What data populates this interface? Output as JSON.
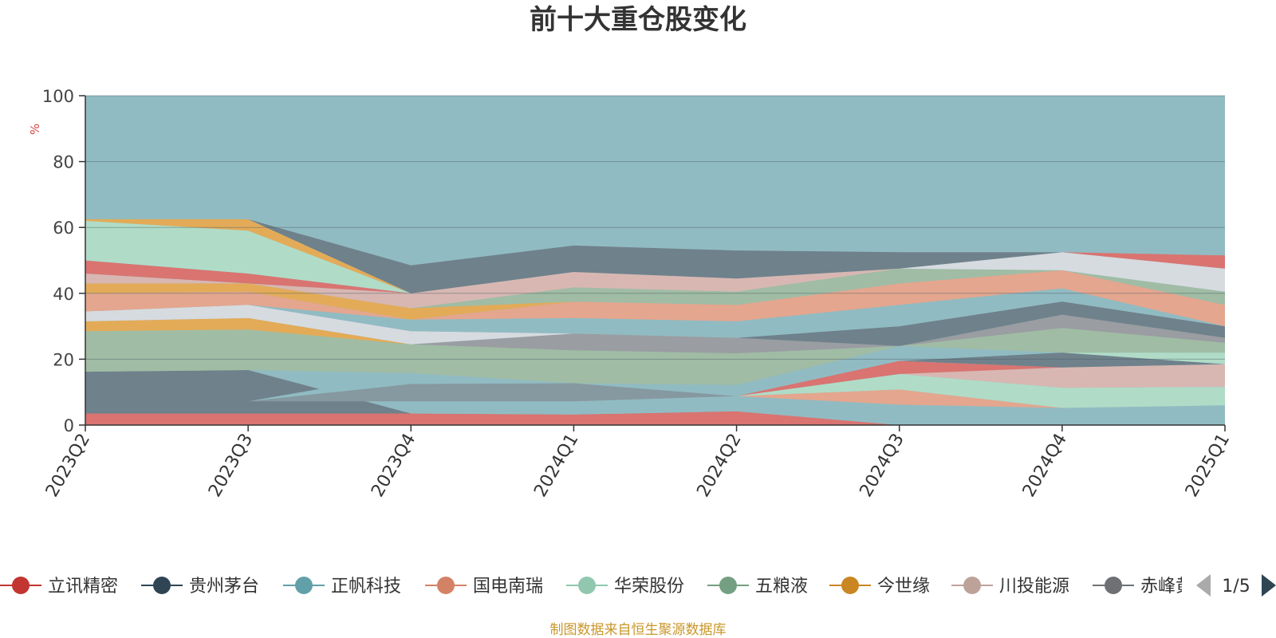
{
  "chart_data": {
    "type": "area",
    "title": "前十大重仓股变化",
    "ylabel": "%",
    "ylim": [
      0,
      100
    ],
    "yticks": [
      0,
      20,
      40,
      60,
      80,
      100
    ],
    "grid": true,
    "categories": [
      "2023Q2",
      "2023Q3",
      "2023Q4",
      "2024Q1",
      "2024Q2",
      "2024Q3",
      "2024Q4",
      "2025Q1"
    ],
    "background_color": "#91bbc2",
    "layers": [
      {
        "name": "立讯精密",
        "color": "#d97471",
        "lower": [
          0,
          0,
          0,
          0,
          0,
          0,
          0,
          0
        ],
        "upper": [
          3.5,
          3.5,
          3.5,
          3.2,
          4.2,
          0,
          0,
          0
        ]
      },
      {
        "name": "band-2",
        "color": "#91bbc2",
        "lower": [
          3.5,
          3.5,
          3.5,
          3.2,
          4.2,
          0,
          0,
          0
        ],
        "upper": [
          3.5,
          3.5,
          7.2,
          7.2,
          8.8,
          6.2,
          5.2,
          6.0
        ]
      },
      {
        "name": "band-3",
        "color": "#6f818b",
        "lower": [
          3.5,
          3.5,
          3.5,
          3.2,
          4.2,
          0,
          0,
          0
        ],
        "upper": [
          16.2,
          16.7,
          3.5,
          3.2,
          4.2,
          0,
          0,
          0
        ]
      },
      {
        "name": "band-4",
        "color": "#8698a0",
        "lower": [
          7.2,
          7.2,
          7.2,
          7.2,
          8.8,
          6.2,
          5.2,
          6.0
        ],
        "upper": [
          7.2,
          7.2,
          12.5,
          12.7,
          8.8,
          6.2,
          5.2,
          6.0
        ]
      },
      {
        "name": "band-5",
        "color": "#e4a68e",
        "lower": [
          7.2,
          7.2,
          7.2,
          7.2,
          8.8,
          6.2,
          5.2,
          6.0
        ],
        "upper": [
          7.2,
          7.2,
          7.2,
          7.2,
          8.8,
          10.8,
          5.2,
          6.0
        ]
      },
      {
        "name": "band-6",
        "color": "#b0dcc7",
        "lower": [
          7.2,
          7.2,
          7.2,
          7.2,
          8.8,
          10.8,
          5.2,
          6.0
        ],
        "upper": [
          7.2,
          7.2,
          7.2,
          7.2,
          8.8,
          15.5,
          11.3,
          11.6
        ]
      },
      {
        "name": "band-7",
        "color": "#d97471",
        "lower": [
          7.2,
          7.2,
          7.2,
          7.2,
          8.8,
          15.5,
          17.0,
          11.6
        ],
        "upper": [
          7.2,
          7.2,
          7.2,
          7.2,
          8.8,
          19.5,
          17.5,
          11.6
        ]
      },
      {
        "name": "band-8",
        "color": "#d8b7b2",
        "lower": [
          7.2,
          7.2,
          7.2,
          7.2,
          8.8,
          15.5,
          11.3,
          11.6
        ],
        "upper": [
          7.2,
          7.2,
          7.2,
          7.2,
          8.8,
          15.5,
          17.5,
          18.5
        ]
      },
      {
        "name": "band-9",
        "color": "#6f818b",
        "lower": [
          7.2,
          7.2,
          7.2,
          7.2,
          8.8,
          19.5,
          17.5,
          18.5
        ],
        "upper": [
          7.2,
          7.2,
          7.2,
          7.2,
          8.8,
          19.5,
          22.0,
          18.5
        ]
      },
      {
        "name": "band-10",
        "color": "#b0dcc7",
        "lower": [
          7.2,
          7.2,
          7.2,
          7.2,
          8.8,
          19.5,
          22.0,
          18.5
        ],
        "upper": [
          7.2,
          7.2,
          7.2,
          7.2,
          8.8,
          19.5,
          22.0,
          22.0
        ]
      },
      {
        "name": "band-11",
        "color": "#91bbc2",
        "lower": [
          7.2,
          7.2,
          12.5,
          12.7,
          8.8,
          19.5,
          22.0,
          22.0
        ],
        "upper": [
          7.2,
          7.2,
          15.8,
          12.7,
          12.2,
          24.0,
          22.0,
          22.0
        ]
      },
      {
        "name": "band-12",
        "color": "#a0bca4",
        "lower": [
          16.2,
          16.7,
          15.8,
          12.7,
          12.2,
          24.0,
          22.0,
          22.0
        ],
        "upper": [
          28.5,
          29.0,
          24.5,
          22.7,
          21.8,
          24.0,
          29.5,
          25.0
        ]
      },
      {
        "name": "band-13",
        "color": "#e3ab58",
        "lower": [
          28.5,
          29.0,
          24.5,
          22.7,
          21.8,
          24.0,
          29.5,
          25.0
        ],
        "upper": [
          31.5,
          32.5,
          24.5,
          22.7,
          21.8,
          24.0,
          29.5,
          25.0
        ]
      },
      {
        "name": "band-14",
        "color": "#9a9da1",
        "lower": [
          31.5,
          32.5,
          24.5,
          22.7,
          21.8,
          24.0,
          29.5,
          25.0
        ],
        "upper": [
          31.5,
          32.5,
          24.5,
          27.8,
          26.5,
          24.0,
          33.5,
          26.5
        ]
      },
      {
        "name": "band-15",
        "color": "#6f818b",
        "lower": [
          31.5,
          32.5,
          24.5,
          27.8,
          26.5,
          24.0,
          33.5,
          26.5
        ],
        "upper": [
          31.5,
          32.5,
          24.5,
          27.8,
          26.5,
          30.0,
          37.5,
          30.0
        ]
      },
      {
        "name": "band-16",
        "color": "#d6dbe0",
        "lower": [
          31.5,
          32.5,
          24.5,
          27.8,
          26.5,
          30.0,
          37.5,
          30.0
        ],
        "upper": [
          34.5,
          36.5,
          28.5,
          27.8,
          26.5,
          30.0,
          37.5,
          30.0
        ]
      },
      {
        "name": "band-17",
        "color": "#91bbc2",
        "lower": [
          34.5,
          36.5,
          28.5,
          27.8,
          26.5,
          30.0,
          37.5,
          30.0
        ],
        "upper": [
          34.5,
          36.5,
          32.0,
          32.5,
          31.5,
          36.5,
          41.5,
          30.0
        ]
      },
      {
        "name": "band-18",
        "color": "#e4a68e",
        "lower": [
          34.5,
          36.5,
          32.0,
          32.5,
          31.5,
          36.5,
          41.5,
          30.0
        ],
        "upper": [
          40.0,
          40.5,
          32.0,
          37.5,
          36.5,
          43.0,
          47.0,
          36.5
        ]
      },
      {
        "name": "band-19",
        "color": "#e3ab58",
        "lower": [
          40.0,
          40.5,
          32.0,
          37.5,
          36.5,
          43.0,
          47.0,
          36.5
        ],
        "upper": [
          43.0,
          43.0,
          35.5,
          37.5,
          36.5,
          43.0,
          47.0,
          36.5
        ]
      },
      {
        "name": "band-20",
        "color": "#a0bca4",
        "lower": [
          43.0,
          43.0,
          35.5,
          37.5,
          36.5,
          43.0,
          47.0,
          36.5
        ],
        "upper": [
          43.0,
          43.0,
          35.5,
          41.8,
          40.5,
          47.5,
          47.0,
          40.5
        ]
      },
      {
        "name": "band-21",
        "color": "#d8b7b2",
        "lower": [
          43.0,
          43.0,
          35.5,
          41.8,
          40.5,
          47.5,
          47.0,
          40.5
        ],
        "upper": [
          46.0,
          43.0,
          40.0,
          46.5,
          44.5,
          47.5,
          47.0,
          40.5
        ]
      },
      {
        "name": "band-22",
        "color": "#d97471",
        "lower": [
          46.0,
          43.0,
          40.0,
          46.5,
          44.5,
          47.5,
          47.0,
          40.5
        ],
        "upper": [
          50.0,
          46.0,
          40.0,
          46.5,
          44.5,
          47.5,
          47.0,
          40.5
        ]
      },
      {
        "name": "band-23",
        "color": "#d6dbe0",
        "lower": [
          50.0,
          46.0,
          40.0,
          46.5,
          44.5,
          47.5,
          47.0,
          40.5
        ],
        "upper": [
          50.0,
          46.0,
          40.0,
          46.5,
          44.5,
          47.5,
          52.5,
          47.5
        ]
      },
      {
        "name": "band-24",
        "color": "#d97471",
        "lower": [
          50.0,
          46.0,
          40.0,
          46.5,
          44.5,
          47.5,
          52.5,
          47.5
        ],
        "upper": [
          50.0,
          46.0,
          40.0,
          46.5,
          44.5,
          47.5,
          52.5,
          51.5
        ]
      },
      {
        "name": "band-25",
        "color": "#b0dcc7",
        "lower": [
          50.0,
          46.0,
          40.0,
          46.5,
          44.5,
          47.5,
          52.5,
          51.5
        ],
        "upper": [
          62.0,
          59.0,
          40.0,
          46.5,
          44.5,
          47.5,
          52.5,
          51.5
        ]
      },
      {
        "name": "band-26",
        "color": "#e3ab58",
        "lower": [
          62.0,
          59.0,
          40.0,
          46.5,
          44.5,
          47.5,
          52.5,
          51.5
        ],
        "upper": [
          62.5,
          62.5,
          40.0,
          46.5,
          44.5,
          47.5,
          52.5,
          51.5
        ]
      },
      {
        "name": "band-27",
        "color": "#6f818b",
        "lower": [
          62.5,
          62.5,
          40.0,
          46.5,
          44.5,
          47.5,
          52.5,
          51.5
        ],
        "upper": [
          62.5,
          62.5,
          48.5,
          54.5,
          53.0,
          52.5,
          52.5,
          51.5
        ]
      }
    ],
    "legend": {
      "items": [
        {
          "name": "立讯精密",
          "color": "#c23531"
        },
        {
          "name": "贵州茅台",
          "color": "#2f4554"
        },
        {
          "name": "正帆科技",
          "color": "#61a0a8"
        },
        {
          "name": "国电南瑞",
          "color": "#d48265"
        },
        {
          "name": "华荣股份",
          "color": "#91c7ae"
        },
        {
          "name": "五粮液",
          "color": "#749f83"
        },
        {
          "name": "今世缘",
          "color": "#ca8622"
        },
        {
          "name": "川投能源",
          "color": "#bda29a"
        },
        {
          "name": "赤峰黄金",
          "color": "#6e7074"
        }
      ],
      "page": "1/5",
      "placement": "bottom"
    }
  },
  "footer": {
    "source": "制图数据来自恒生聚源数据库"
  }
}
